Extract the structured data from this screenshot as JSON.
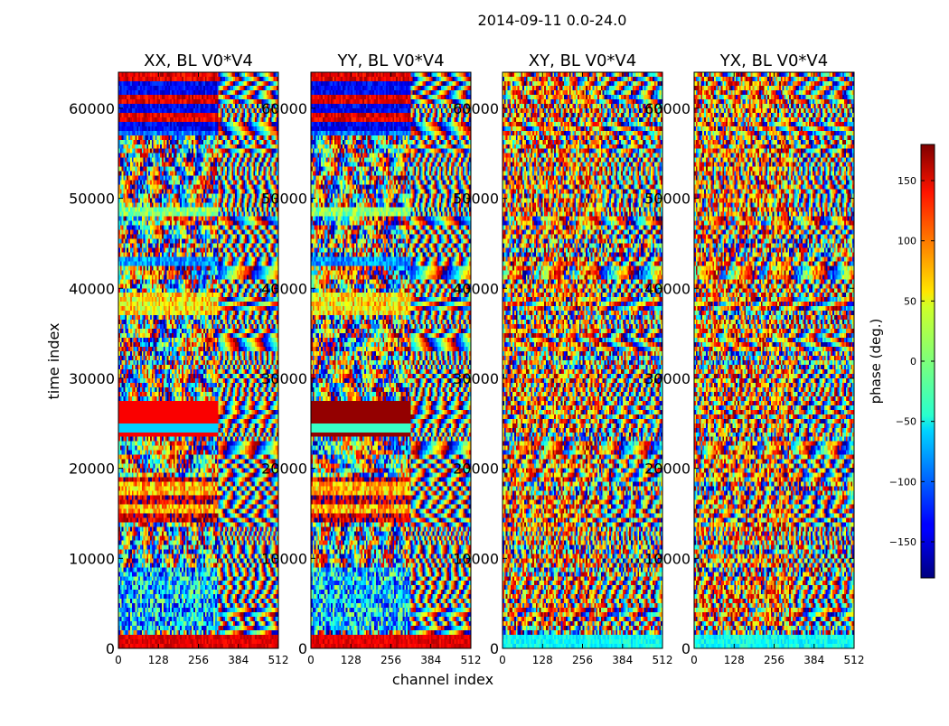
{
  "figure": {
    "suptitle": "2014-09-11 0.0-24.0",
    "xlabel": "channel index",
    "ylabel": "time index"
  },
  "chart_data": {
    "type": "heatmap",
    "panels": [
      {
        "title": "XX, BL V0*V4",
        "profile": "xx"
      },
      {
        "title": "YY, BL V0*V4",
        "profile": "yy"
      },
      {
        "title": "XY, BL V0*V4",
        "profile": "xy"
      },
      {
        "title": "YX, BL V0*V4",
        "profile": "yx"
      }
    ],
    "xlim": [
      0,
      512
    ],
    "ylim": [
      0,
      64000
    ],
    "x_ticks": [
      0,
      128,
      256,
      384,
      512
    ],
    "y_ticks": [
      0,
      10000,
      20000,
      30000,
      40000,
      50000,
      60000
    ],
    "colorbar": {
      "label": "phase (deg.)",
      "range": [
        -180,
        180
      ],
      "ticks": [
        -150,
        -100,
        -50,
        0,
        50,
        100,
        150
      ],
      "colormap": "jet"
    }
  }
}
